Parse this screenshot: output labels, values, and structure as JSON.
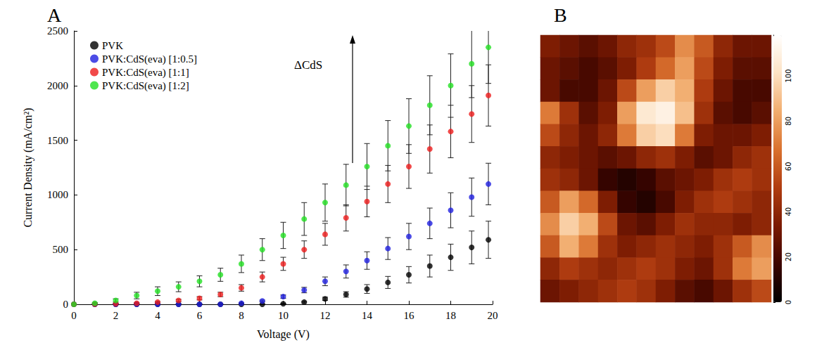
{
  "chart_data": [
    {
      "type": "scatter",
      "title": "A",
      "x_label": "Voltage (V)",
      "y_label": "Current Density (mA/cm²)",
      "x": [
        0,
        1,
        2,
        3,
        4,
        5,
        6,
        7,
        8,
        9,
        10,
        11,
        12,
        13,
        14,
        15,
        16,
        17,
        18,
        19,
        19.8
      ],
      "xlim": [
        0,
        20
      ],
      "xticks": [
        0,
        2,
        4,
        6,
        8,
        10,
        12,
        14,
        16,
        18,
        20
      ],
      "ylim": [
        0,
        2500
      ],
      "yticks": [
        0,
        500,
        1000,
        1500,
        2000,
        2500
      ],
      "grid": false,
      "legend": "upper left",
      "marker": "circle",
      "annotations": [
        {
          "text": "ΔCdS"
        }
      ],
      "series": [
        {
          "name": "PVK",
          "color": "#000000",
          "values": [
            0,
            0,
            0,
            0,
            0,
            0,
            0,
            0,
            0,
            0,
            5,
            20,
            50,
            90,
            140,
            200,
            270,
            350,
            430,
            520,
            590
          ],
          "errors": [
            0,
            0,
            0,
            0,
            0,
            0,
            0,
            0,
            0,
            0,
            3,
            8,
            15,
            25,
            40,
            55,
            75,
            100,
            120,
            150,
            170
          ]
        },
        {
          "name": "PVK:CdS(eva) [1:0.5]",
          "color": "#1f1fe0",
          "values": [
            0,
            0,
            0,
            0,
            0,
            0,
            0,
            0,
            10,
            30,
            70,
            130,
            210,
            300,
            400,
            510,
            620,
            740,
            860,
            980,
            1100
          ],
          "errors": [
            0,
            0,
            0,
            0,
            0,
            0,
            0,
            0,
            3,
            8,
            15,
            25,
            40,
            60,
            80,
            100,
            120,
            140,
            160,
            175,
            190
          ]
        },
        {
          "name": "PVK:CdS(eva) [1:1]",
          "color": "#ee1c1c",
          "values": [
            0,
            2,
            5,
            10,
            20,
            35,
            55,
            90,
            150,
            250,
            370,
            500,
            640,
            790,
            940,
            1100,
            1260,
            1420,
            1580,
            1740,
            1910
          ],
          "errors": [
            0,
            1,
            2,
            4,
            6,
            10,
            15,
            20,
            30,
            45,
            60,
            80,
            100,
            120,
            140,
            170,
            200,
            220,
            240,
            260,
            280
          ]
        },
        {
          "name": "PVK:CdS(eva) [1:2]",
          "color": "#22e022",
          "values": [
            0,
            10,
            35,
            80,
            120,
            160,
            210,
            270,
            370,
            500,
            630,
            780,
            930,
            1090,
            1260,
            1450,
            1630,
            1820,
            2000,
            2200,
            2350
          ],
          "errors": [
            0,
            5,
            15,
            30,
            40,
            45,
            50,
            60,
            80,
            100,
            120,
            150,
            170,
            190,
            210,
            230,
            250,
            270,
            290,
            310,
            330
          ]
        }
      ]
    },
    {
      "type": "heatmap",
      "title": "B",
      "tick_labels": false,
      "color_range": [
        0,
        118
      ],
      "color_ticks": [
        0,
        20,
        40,
        60,
        80,
        100
      ],
      "cells": [
        [
          35,
          30,
          25,
          30,
          40,
          45,
          55,
          75,
          60,
          40,
          30,
          30
        ],
        [
          30,
          25,
          20,
          25,
          35,
          50,
          65,
          80,
          55,
          35,
          25,
          25
        ],
        [
          30,
          20,
          20,
          30,
          55,
          80,
          95,
          85,
          50,
          30,
          20,
          20
        ],
        [
          70,
          45,
          25,
          35,
          80,
          105,
          110,
          90,
          45,
          25,
          20,
          25
        ],
        [
          55,
          40,
          30,
          40,
          70,
          95,
          100,
          70,
          35,
          30,
          30,
          35
        ],
        [
          40,
          35,
          30,
          25,
          30,
          40,
          45,
          35,
          25,
          30,
          40,
          45
        ],
        [
          45,
          40,
          30,
          15,
          10,
          15,
          25,
          30,
          35,
          45,
          50,
          45
        ],
        [
          60,
          80,
          65,
          35,
          15,
          10,
          20,
          35,
          45,
          50,
          45,
          40
        ],
        [
          75,
          95,
          85,
          55,
          30,
          25,
          35,
          45,
          40,
          40,
          35,
          40
        ],
        [
          60,
          85,
          70,
          45,
          35,
          40,
          45,
          40,
          35,
          45,
          60,
          75
        ],
        [
          40,
          50,
          45,
          40,
          45,
          50,
          45,
          35,
          30,
          45,
          70,
          80
        ],
        [
          30,
          35,
          40,
          45,
          50,
          45,
          35,
          25,
          20,
          30,
          45,
          55
        ]
      ]
    }
  ]
}
